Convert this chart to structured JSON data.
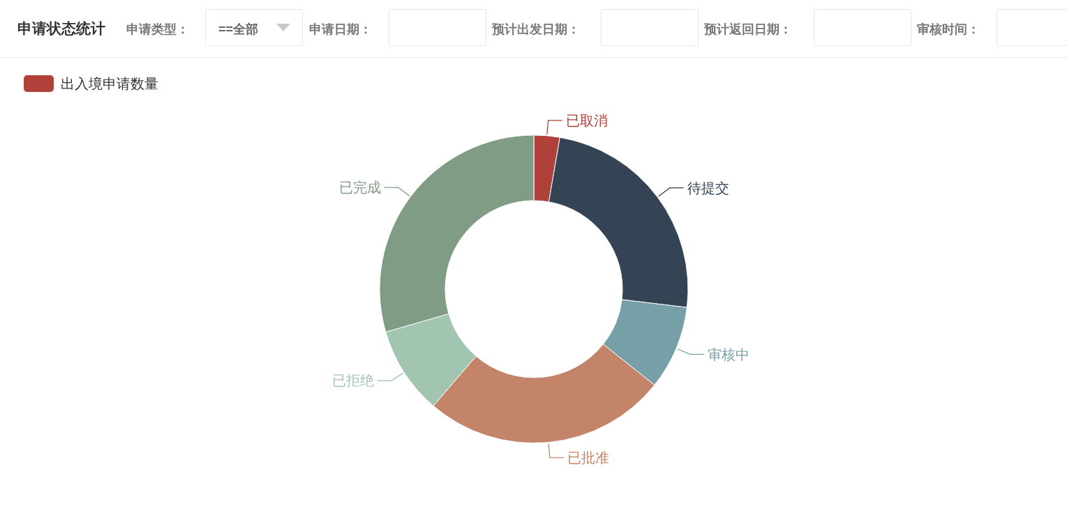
{
  "chart_data": {
    "type": "donut",
    "title": "申请状态统计",
    "annotations": [
      "申请类型：",
      "==全部",
      "申请日期：",
      "预计出发日期：",
      "预计返回日期：",
      "审核时间："
    ],
    "categories": [
      "已取消",
      "待提交",
      "审核中",
      "已批准",
      "已拒绝",
      "已完成"
    ],
    "series": [
      {
        "name": "出入境申请数量",
        "values": [
          2.7,
          24.2,
          8.8,
          25.6,
          9.2,
          29.5
        ]
      }
    ],
    "colors": [
      "#b0413a",
      "#344454",
      "#769fa7",
      "#c3846a",
      "#a1c5b0",
      "#809c85"
    ],
    "legend": "top left"
  }
}
